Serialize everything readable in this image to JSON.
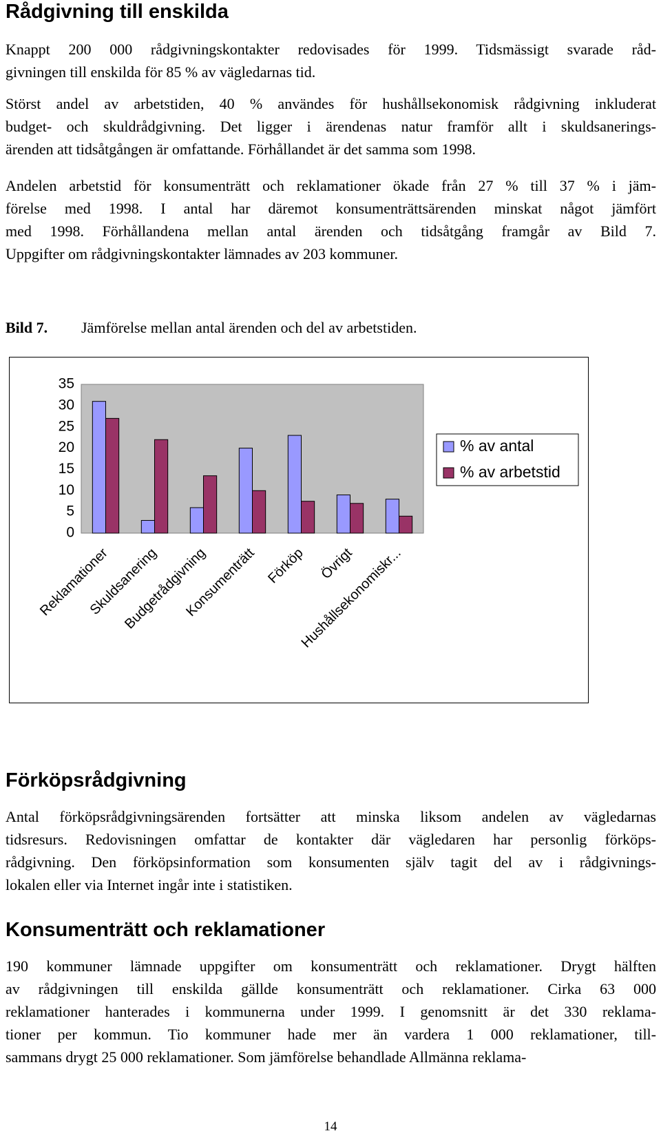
{
  "sections": [
    {
      "heading": "Rådgivning till enskilda",
      "paragraphs": [
        [
          "Knappt 200 000 rådgivningskontakter redovisades för 1999. Tidsmässigt svarade råd-",
          "givningen till enskilda för 85 % av vägledarnas tid."
        ],
        [
          "Störst andel av arbetstiden, 40 % användes för hushållsekonomisk rådgivning inkluderat",
          "budget- och skuldrådgivning. Det ligger i ärendenas natur framför allt i skuldsanerings-",
          "ärenden att tidsåtgången är omfattande. Förhållandet är det samma som 1998."
        ],
        [
          "Andelen arbetstid för konsumenträtt och reklamationer ökade från 27 % till 37 % i jäm-",
          "förelse med 1998. I antal har däremot konsumenträttsärenden minskat något jämfört",
          "med 1998. Förhållandena mellan antal ärenden och tidsåtgång framgår av Bild 7.",
          "Uppgifter om rådgivningskontakter lämnades av 203 kommuner."
        ]
      ]
    },
    {
      "heading": "Förköpsrådgivning",
      "paragraphs": [
        [
          "Antal förköpsrådgivningsärenden fortsätter att minska liksom andelen av vägledarnas",
          "tidsresurs. Redovisningen omfattar de kontakter där vägledaren har personlig förköps-",
          "rådgivning. Den förköpsinformation som konsumenten själv tagit del av i rådgivnings-",
          "lokalen eller via Internet ingår inte i statistiken."
        ]
      ]
    },
    {
      "heading": "Konsumenträtt och reklamationer",
      "paragraphs": [
        [
          "190 kommuner lämnade uppgifter om konsumenträtt och reklamationer. Drygt hälften",
          "av rådgivningen till enskilda gällde konsumenträtt och reklamationer. Cirka 63 000",
          "reklamationer hanterades i kommunerna under 1999. I genomsnitt är det 330 reklama-",
          "tioner per kommun. Tio kommuner hade mer än vardera 1 000 reklamationer, till-",
          "sammans drygt 25 000 reklamationer. Som jämförelse behandlade Allmänna reklama-"
        ]
      ]
    }
  ],
  "figure": {
    "label": "Bild 7.",
    "caption": "Jämförelse mellan antal ärenden och del av arbetstiden."
  },
  "chart_data": {
    "type": "bar",
    "categories": [
      "Reklamationer",
      "Skuldsanering",
      "Budgetrådgivning",
      "Konsumenträtt",
      "Förköp",
      "Övrigt",
      "Hushållsekonomiskr..."
    ],
    "series": [
      {
        "name": "% av antal",
        "color": "#9999ff",
        "values": [
          31,
          3,
          6,
          20,
          23,
          9,
          8
        ]
      },
      {
        "name": "% av arbetstid",
        "color": "#993366",
        "values": [
          27,
          22,
          13.5,
          10,
          7.5,
          7,
          4
        ]
      }
    ],
    "ylim": [
      0,
      35
    ],
    "yticks": [
      0,
      5,
      10,
      15,
      20,
      25,
      30,
      35
    ],
    "grid": false,
    "legend": "right"
  },
  "page_number": "14"
}
